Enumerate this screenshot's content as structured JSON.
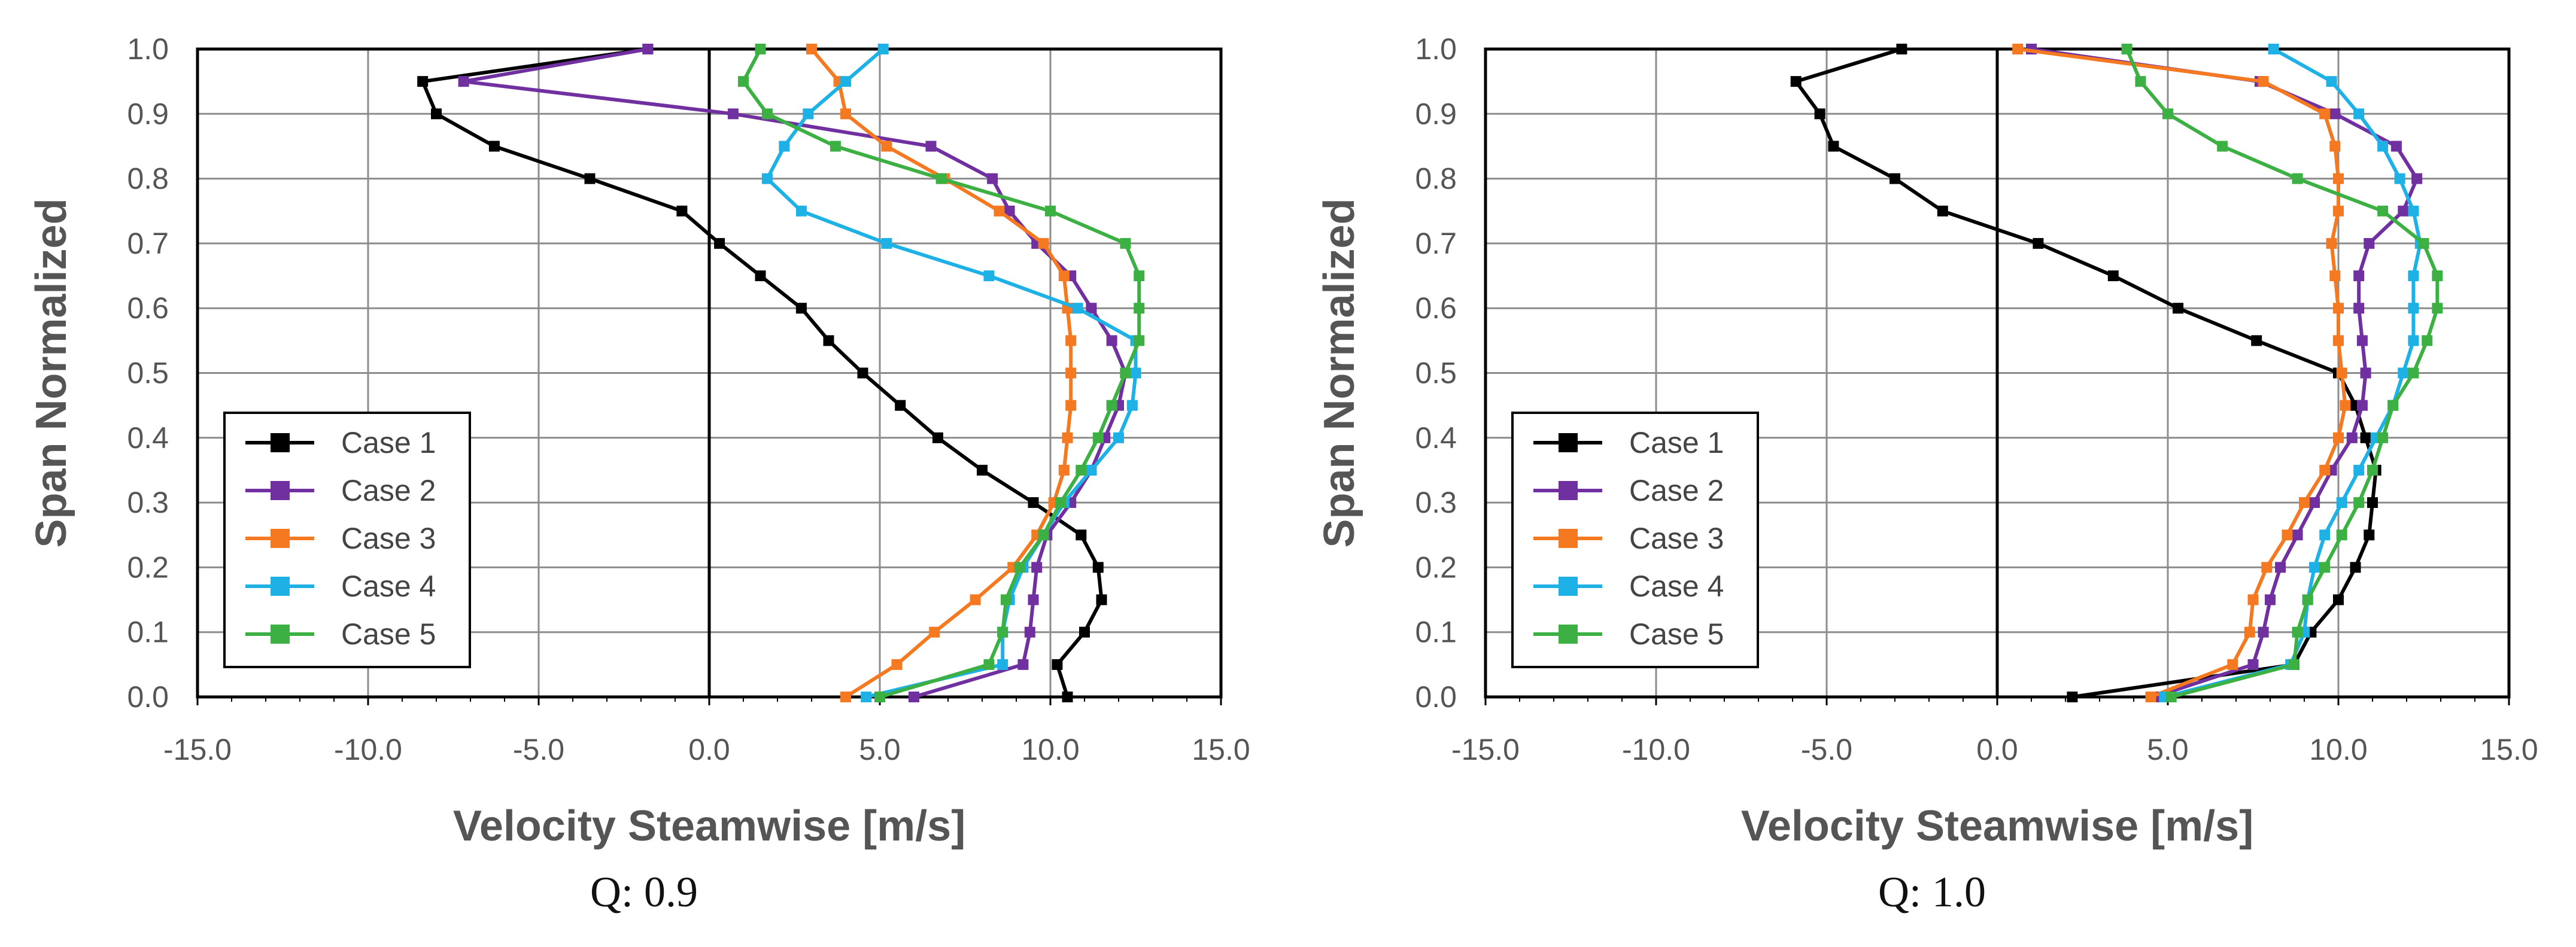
{
  "chart_data": [
    {
      "type": "line",
      "caption": "Q: 0.9",
      "xlabel": "Velocity Steamwise [m/s]",
      "ylabel": "Span Normalized",
      "xlim": [
        -15,
        15
      ],
      "ylim": [
        0,
        1
      ],
      "xticks": [
        "-15.0",
        "-10.0",
        "-5.0",
        "0.0",
        "5.0",
        "10.0",
        "15.0"
      ],
      "yticks": [
        "0.0",
        "0.1",
        "0.2",
        "0.3",
        "0.4",
        "0.5",
        "0.6",
        "0.7",
        "0.8",
        "0.9",
        "1.0"
      ],
      "grid": true,
      "legend_position": "bottom-left",
      "series": [
        {
          "name": "Case 1",
          "color": "#000000",
          "points": [
            [
              10.5,
              0.0
            ],
            [
              10.2,
              0.05
            ],
            [
              11.0,
              0.1
            ],
            [
              11.5,
              0.15
            ],
            [
              11.4,
              0.2
            ],
            [
              10.9,
              0.25
            ],
            [
              9.5,
              0.3
            ],
            [
              8.0,
              0.35
            ],
            [
              6.7,
              0.4
            ],
            [
              5.6,
              0.45
            ],
            [
              4.5,
              0.5
            ],
            [
              3.5,
              0.55
            ],
            [
              2.7,
              0.6
            ],
            [
              1.5,
              0.65
            ],
            [
              0.3,
              0.7
            ],
            [
              -0.8,
              0.75
            ],
            [
              -3.5,
              0.8
            ],
            [
              -6.3,
              0.85
            ],
            [
              -8.0,
              0.9
            ],
            [
              -8.4,
              0.95
            ],
            [
              -1.8,
              1.0
            ]
          ]
        },
        {
          "name": "Case 2",
          "color": "#7030A0",
          "points": [
            [
              6.0,
              0.0
            ],
            [
              9.2,
              0.05
            ],
            [
              9.4,
              0.1
            ],
            [
              9.5,
              0.15
            ],
            [
              9.6,
              0.2
            ],
            [
              9.9,
              0.25
            ],
            [
              10.6,
              0.3
            ],
            [
              11.2,
              0.35
            ],
            [
              11.6,
              0.4
            ],
            [
              12.0,
              0.45
            ],
            [
              12.2,
              0.5
            ],
            [
              11.8,
              0.55
            ],
            [
              11.2,
              0.6
            ],
            [
              10.6,
              0.65
            ],
            [
              9.6,
              0.7
            ],
            [
              8.8,
              0.75
            ],
            [
              8.3,
              0.8
            ],
            [
              6.5,
              0.85
            ],
            [
              0.7,
              0.9
            ],
            [
              -7.2,
              0.95
            ],
            [
              -1.8,
              1.0
            ]
          ]
        },
        {
          "name": "Case 3",
          "color": "#F47920",
          "points": [
            [
              4.0,
              0.0
            ],
            [
              5.5,
              0.05
            ],
            [
              6.6,
              0.1
            ],
            [
              7.8,
              0.15
            ],
            [
              8.9,
              0.2
            ],
            [
              9.6,
              0.25
            ],
            [
              10.1,
              0.3
            ],
            [
              10.4,
              0.35
            ],
            [
              10.5,
              0.4
            ],
            [
              10.6,
              0.45
            ],
            [
              10.6,
              0.5
            ],
            [
              10.6,
              0.55
            ],
            [
              10.5,
              0.6
            ],
            [
              10.4,
              0.65
            ],
            [
              9.8,
              0.7
            ],
            [
              8.5,
              0.75
            ],
            [
              6.9,
              0.8
            ],
            [
              5.2,
              0.85
            ],
            [
              4.0,
              0.9
            ],
            [
              3.8,
              0.95
            ],
            [
              3.0,
              1.0
            ]
          ]
        },
        {
          "name": "Case 4",
          "color": "#1EB1E6",
          "points": [
            [
              4.6,
              0.0
            ],
            [
              8.6,
              0.05
            ],
            [
              8.6,
              0.1
            ],
            [
              8.8,
              0.15
            ],
            [
              9.2,
              0.2
            ],
            [
              9.8,
              0.25
            ],
            [
              10.4,
              0.3
            ],
            [
              11.2,
              0.35
            ],
            [
              12.0,
              0.4
            ],
            [
              12.4,
              0.45
            ],
            [
              12.5,
              0.5
            ],
            [
              12.5,
              0.55
            ],
            [
              10.8,
              0.6
            ],
            [
              8.2,
              0.65
            ],
            [
              5.2,
              0.7
            ],
            [
              2.7,
              0.75
            ],
            [
              1.7,
              0.8
            ],
            [
              2.2,
              0.85
            ],
            [
              2.9,
              0.9
            ],
            [
              4.0,
              0.95
            ],
            [
              5.1,
              1.0
            ]
          ]
        },
        {
          "name": "Case 5",
          "color": "#3CB043",
          "points": [
            [
              5.0,
              0.0
            ],
            [
              8.2,
              0.05
            ],
            [
              8.6,
              0.1
            ],
            [
              8.7,
              0.15
            ],
            [
              9.1,
              0.2
            ],
            [
              9.8,
              0.25
            ],
            [
              10.3,
              0.3
            ],
            [
              10.9,
              0.35
            ],
            [
              11.4,
              0.4
            ],
            [
              11.8,
              0.45
            ],
            [
              12.2,
              0.5
            ],
            [
              12.6,
              0.55
            ],
            [
              12.6,
              0.6
            ],
            [
              12.6,
              0.65
            ],
            [
              12.2,
              0.7
            ],
            [
              10.0,
              0.75
            ],
            [
              6.8,
              0.8
            ],
            [
              3.7,
              0.85
            ],
            [
              1.7,
              0.9
            ],
            [
              1.0,
              0.95
            ],
            [
              1.5,
              1.0
            ]
          ]
        }
      ]
    },
    {
      "type": "line",
      "caption": "Q: 1.0",
      "xlabel": "Velocity Steamwise [m/s]",
      "ylabel": "Span Normalized",
      "xlim": [
        -15,
        15
      ],
      "ylim": [
        0,
        1
      ],
      "xticks": [
        "-15.0",
        "-10.0",
        "-5.0",
        "0.0",
        "5.0",
        "10.0",
        "15.0"
      ],
      "yticks": [
        "0.0",
        "0.1",
        "0.2",
        "0.3",
        "0.4",
        "0.5",
        "0.6",
        "0.7",
        "0.8",
        "0.9",
        "1.0"
      ],
      "grid": true,
      "legend_position": "bottom-left",
      "series": [
        {
          "name": "Case 1",
          "color": "#000000",
          "points": [
            [
              2.2,
              0.0
            ],
            [
              8.7,
              0.05
            ],
            [
              9.2,
              0.1
            ],
            [
              10.0,
              0.15
            ],
            [
              10.5,
              0.2
            ],
            [
              10.9,
              0.25
            ],
            [
              11.0,
              0.3
            ],
            [
              11.1,
              0.35
            ],
            [
              10.8,
              0.4
            ],
            [
              10.5,
              0.45
            ],
            [
              10.0,
              0.5
            ],
            [
              7.6,
              0.55
            ],
            [
              5.3,
              0.6
            ],
            [
              3.4,
              0.65
            ],
            [
              1.2,
              0.7
            ],
            [
              -1.6,
              0.75
            ],
            [
              -3.0,
              0.8
            ],
            [
              -4.8,
              0.85
            ],
            [
              -5.2,
              0.9
            ],
            [
              -5.9,
              0.95
            ],
            [
              -2.8,
              1.0
            ]
          ]
        },
        {
          "name": "Case 2",
          "color": "#7030A0",
          "points": [
            [
              4.6,
              0.0
            ],
            [
              7.5,
              0.05
            ],
            [
              7.8,
              0.1
            ],
            [
              8.0,
              0.15
            ],
            [
              8.3,
              0.2
            ],
            [
              8.8,
              0.25
            ],
            [
              9.3,
              0.3
            ],
            [
              9.8,
              0.35
            ],
            [
              10.4,
              0.4
            ],
            [
              10.7,
              0.45
            ],
            [
              10.8,
              0.5
            ],
            [
              10.7,
              0.55
            ],
            [
              10.6,
              0.6
            ],
            [
              10.6,
              0.65
            ],
            [
              10.9,
              0.7
            ],
            [
              11.9,
              0.75
            ],
            [
              12.3,
              0.8
            ],
            [
              11.7,
              0.85
            ],
            [
              9.9,
              0.9
            ],
            [
              7.7,
              0.95
            ],
            [
              1.0,
              1.0
            ]
          ]
        },
        {
          "name": "Case 3",
          "color": "#F47920",
          "points": [
            [
              4.5,
              0.0
            ],
            [
              6.9,
              0.05
            ],
            [
              7.4,
              0.1
            ],
            [
              7.5,
              0.15
            ],
            [
              7.9,
              0.2
            ],
            [
              8.5,
              0.25
            ],
            [
              9.0,
              0.3
            ],
            [
              9.6,
              0.35
            ],
            [
              10.0,
              0.4
            ],
            [
              10.2,
              0.45
            ],
            [
              10.1,
              0.5
            ],
            [
              10.0,
              0.55
            ],
            [
              10.0,
              0.6
            ],
            [
              9.9,
              0.65
            ],
            [
              9.8,
              0.7
            ],
            [
              10.0,
              0.75
            ],
            [
              10.0,
              0.8
            ],
            [
              9.9,
              0.85
            ],
            [
              9.6,
              0.9
            ],
            [
              7.8,
              0.95
            ],
            [
              0.6,
              1.0
            ]
          ]
        },
        {
          "name": "Case 4",
          "color": "#1EB1E6",
          "points": [
            [
              4.9,
              0.0
            ],
            [
              8.6,
              0.05
            ],
            [
              9.0,
              0.1
            ],
            [
              9.1,
              0.15
            ],
            [
              9.3,
              0.2
            ],
            [
              9.6,
              0.25
            ],
            [
              10.1,
              0.3
            ],
            [
              10.6,
              0.35
            ],
            [
              11.1,
              0.4
            ],
            [
              11.6,
              0.45
            ],
            [
              11.9,
              0.5
            ],
            [
              12.2,
              0.55
            ],
            [
              12.2,
              0.6
            ],
            [
              12.2,
              0.65
            ],
            [
              12.4,
              0.7
            ],
            [
              12.2,
              0.75
            ],
            [
              11.8,
              0.8
            ],
            [
              11.3,
              0.85
            ],
            [
              10.6,
              0.9
            ],
            [
              9.8,
              0.95
            ],
            [
              8.1,
              1.0
            ]
          ]
        },
        {
          "name": "Case 5",
          "color": "#3CB043",
          "points": [
            [
              5.1,
              0.0
            ],
            [
              8.7,
              0.05
            ],
            [
              8.8,
              0.1
            ],
            [
              9.1,
              0.15
            ],
            [
              9.6,
              0.2
            ],
            [
              10.1,
              0.25
            ],
            [
              10.6,
              0.3
            ],
            [
              11.0,
              0.35
            ],
            [
              11.3,
              0.4
            ],
            [
              11.6,
              0.45
            ],
            [
              12.2,
              0.5
            ],
            [
              12.6,
              0.55
            ],
            [
              12.9,
              0.6
            ],
            [
              12.9,
              0.65
            ],
            [
              12.5,
              0.7
            ],
            [
              11.3,
              0.75
            ],
            [
              8.8,
              0.8
            ],
            [
              6.6,
              0.85
            ],
            [
              5.0,
              0.9
            ],
            [
              4.2,
              0.95
            ],
            [
              3.8,
              1.0
            ]
          ]
        }
      ]
    }
  ]
}
